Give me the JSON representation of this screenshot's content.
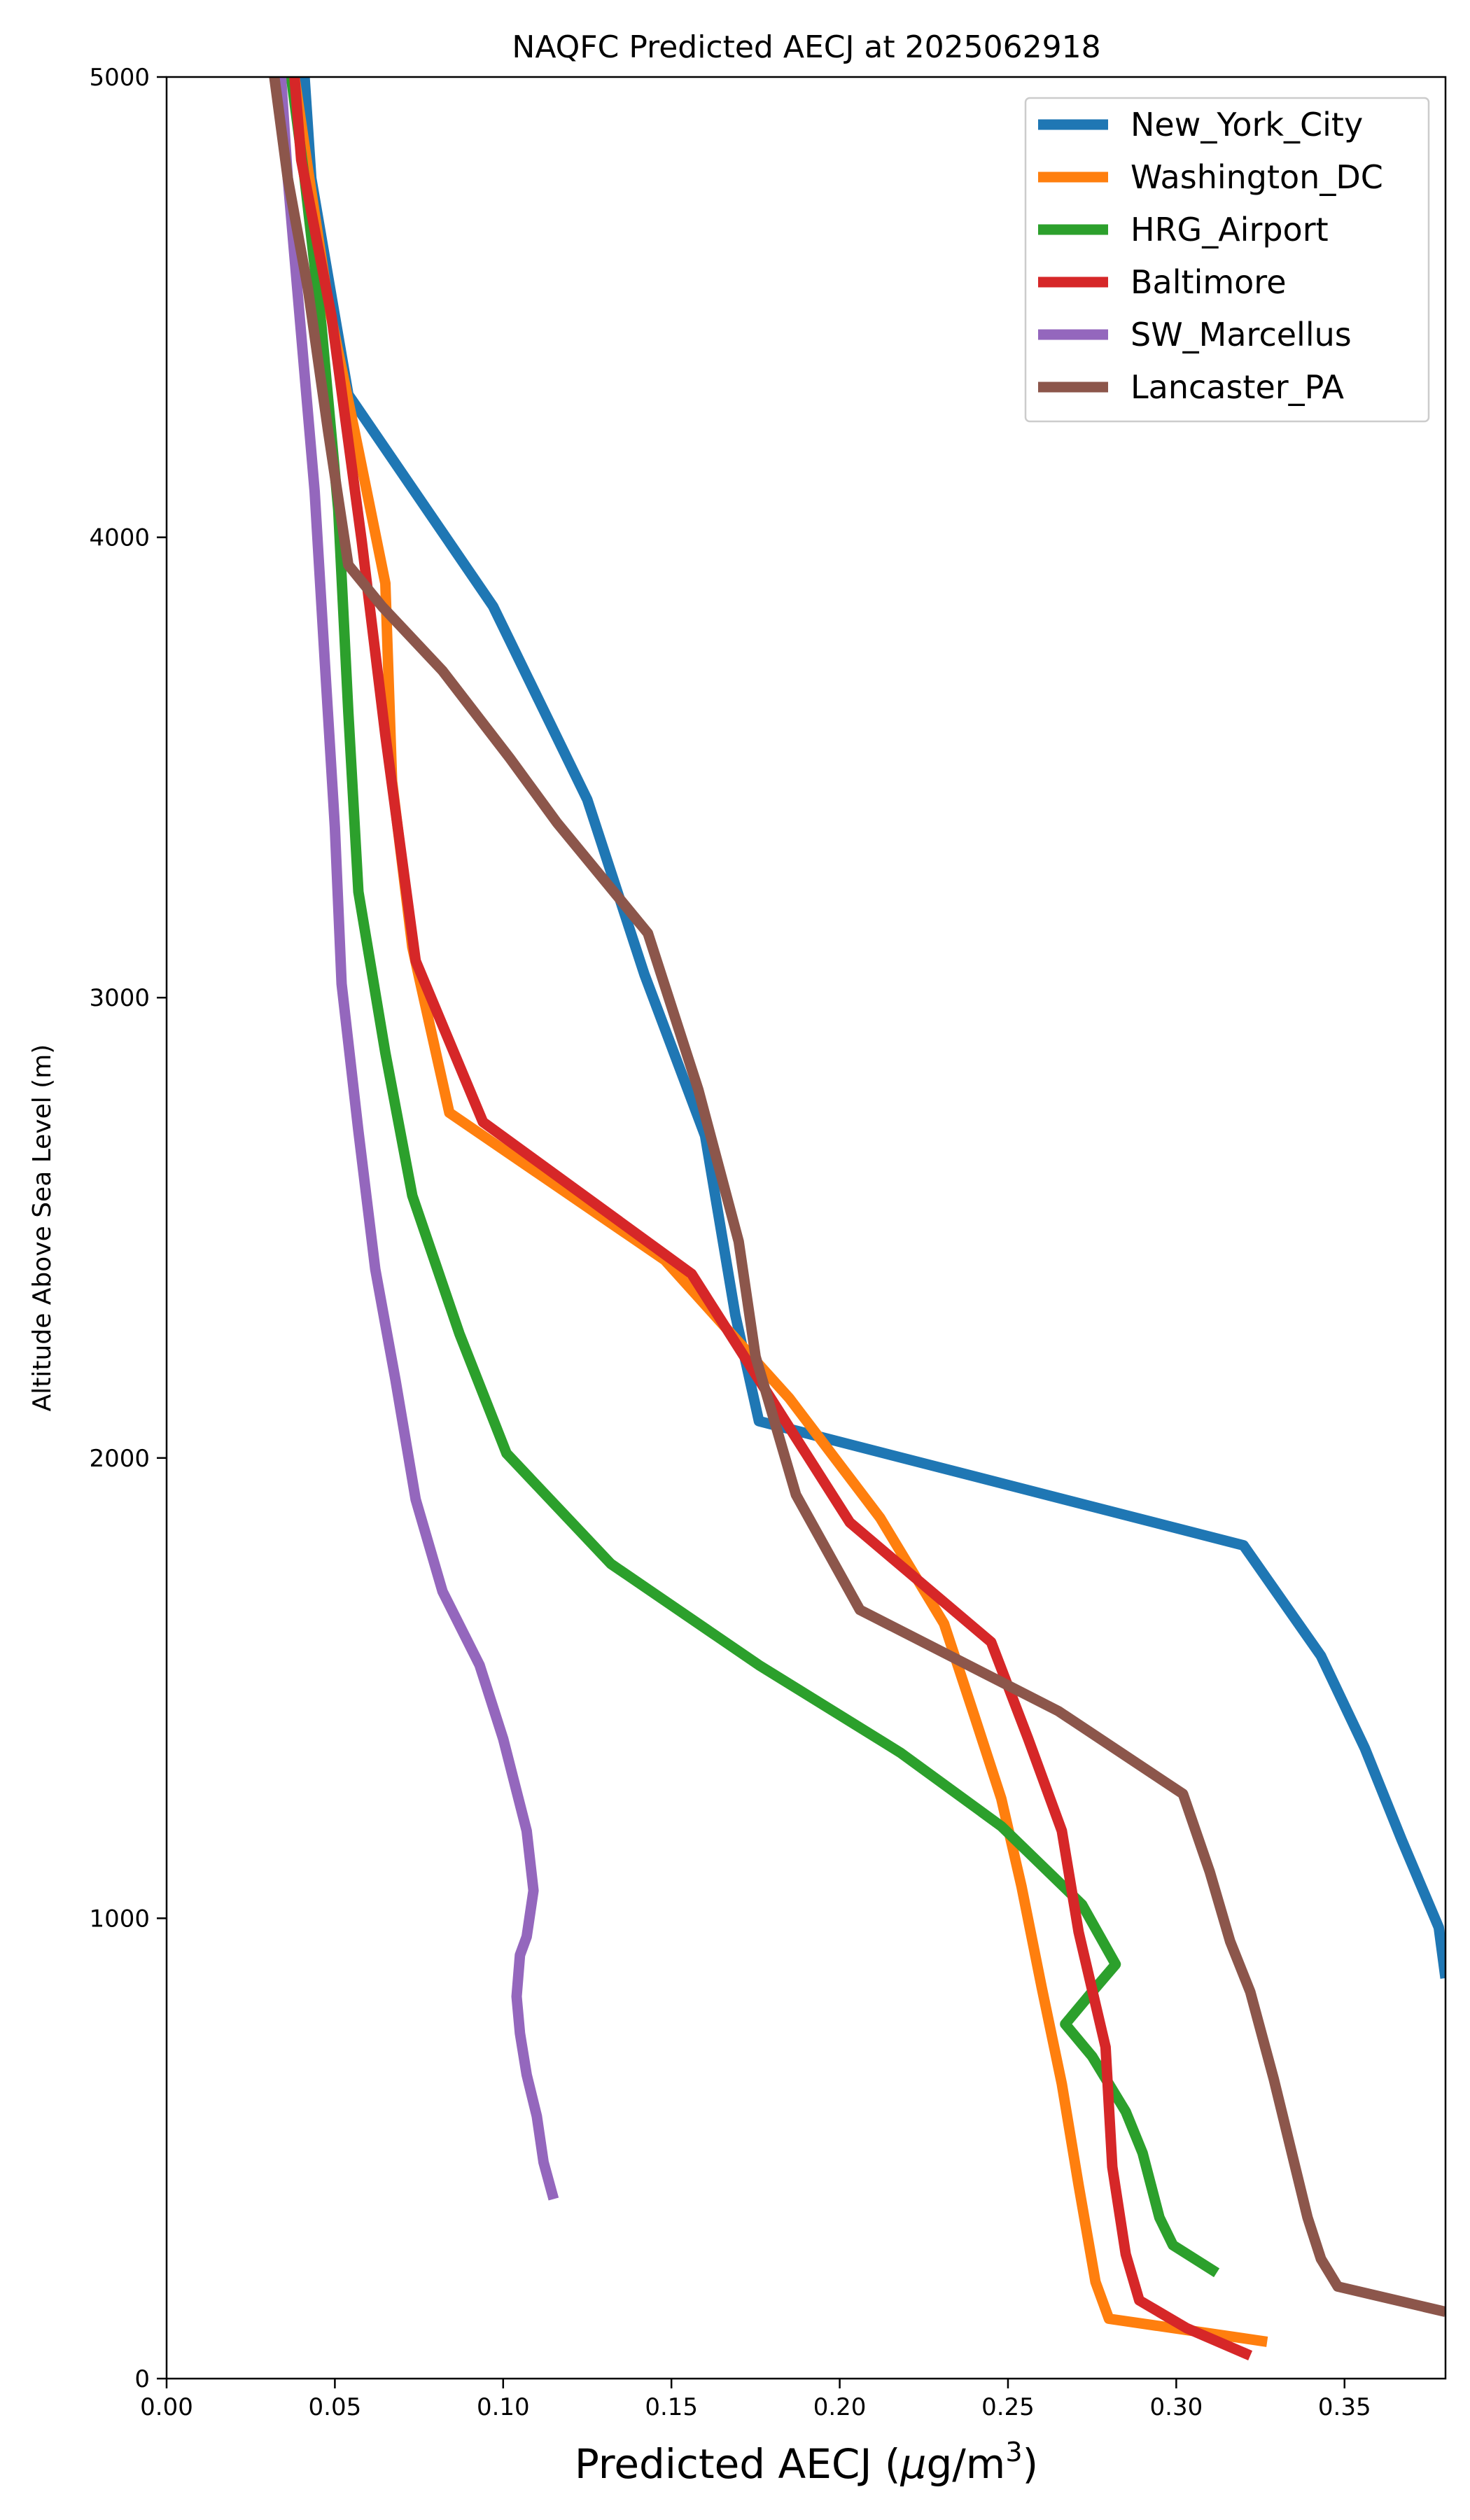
{
  "chart_data": {
    "type": "line",
    "title": "NAQFC Predicted AECJ at 2025062918",
    "xlabel_main": "Predicted AECJ (",
    "xlabel_mu": "μ",
    "xlabel_unit": "g/m",
    "xlabel_exp": "3",
    "xlabel_close": ")",
    "ylabel": "Altitude Above Sea Level (m)",
    "xlim": [
      0.0,
      0.38
    ],
    "ylim": [
      0,
      5000
    ],
    "xticks": [
      0.0,
      0.05,
      0.1,
      0.15,
      0.2,
      0.25,
      0.3,
      0.35
    ],
    "xtick_labels": [
      "0.00",
      "0.05",
      "0.10",
      "0.15",
      "0.20",
      "0.25",
      "0.30",
      "0.35"
    ],
    "yticks": [
      0,
      1000,
      2000,
      3000,
      4000,
      5000
    ],
    "ytick_labels": [
      "0",
      "1000",
      "2000",
      "3000",
      "4000",
      "5000"
    ],
    "grid": false,
    "legend_position": "top-right",
    "series": [
      {
        "name": "New_York_City",
        "color": "#1f77b4",
        "points": [
          [
            0.38,
            870
          ],
          [
            0.378,
            980
          ],
          [
            0.367,
            1170
          ],
          [
            0.356,
            1370
          ],
          [
            0.343,
            1570
          ],
          [
            0.32,
            1810
          ],
          [
            0.176,
            2080
          ],
          [
            0.169,
            2310
          ],
          [
            0.16,
            2700
          ],
          [
            0.142,
            3050
          ],
          [
            0.125,
            3430
          ],
          [
            0.097,
            3850
          ],
          [
            0.054,
            4310
          ],
          [
            0.043,
            4780
          ],
          [
            0.041,
            5000
          ]
        ]
      },
      {
        "name": "Washington_DC",
        "color": "#ff7f0e",
        "points": [
          [
            0.327,
            80
          ],
          [
            0.28,
            130
          ],
          [
            0.276,
            210
          ],
          [
            0.271,
            420
          ],
          [
            0.266,
            640
          ],
          [
            0.26,
            850
          ],
          [
            0.254,
            1070
          ],
          [
            0.248,
            1260
          ],
          [
            0.24,
            1440
          ],
          [
            0.231,
            1640
          ],
          [
            0.212,
            1870
          ],
          [
            0.185,
            2130
          ],
          [
            0.148,
            2430
          ],
          [
            0.084,
            2750
          ],
          [
            0.073,
            3110
          ],
          [
            0.067,
            3470
          ],
          [
            0.065,
            3900
          ],
          [
            0.057,
            4190
          ],
          [
            0.048,
            4510
          ],
          [
            0.042,
            4800
          ],
          [
            0.038,
            5000
          ]
        ]
      },
      {
        "name": "HRG_Airport",
        "color": "#2ca02c",
        "points": [
          [
            0.312,
            230
          ],
          [
            0.299,
            290
          ],
          [
            0.295,
            350
          ],
          [
            0.29,
            490
          ],
          [
            0.285,
            580
          ],
          [
            0.275,
            700
          ],
          [
            0.267,
            770
          ],
          [
            0.275,
            840
          ],
          [
            0.282,
            900
          ],
          [
            0.272,
            1030
          ],
          [
            0.248,
            1200
          ],
          [
            0.218,
            1360
          ],
          [
            0.176,
            1550
          ],
          [
            0.132,
            1770
          ],
          [
            0.101,
            2010
          ],
          [
            0.087,
            2270
          ],
          [
            0.073,
            2570
          ],
          [
            0.065,
            2880
          ],
          [
            0.057,
            3230
          ],
          [
            0.054,
            3620
          ],
          [
            0.051,
            4060
          ],
          [
            0.046,
            4460
          ],
          [
            0.041,
            4780
          ],
          [
            0.037,
            5000
          ]
        ]
      },
      {
        "name": "Baltimore",
        "color": "#d62728",
        "points": [
          [
            0.322,
            50
          ],
          [
            0.303,
            110
          ],
          [
            0.289,
            170
          ],
          [
            0.285,
            270
          ],
          [
            0.281,
            460
          ],
          [
            0.279,
            720
          ],
          [
            0.271,
            970
          ],
          [
            0.266,
            1190
          ],
          [
            0.256,
            1390
          ],
          [
            0.245,
            1600
          ],
          [
            0.203,
            1860
          ],
          [
            0.156,
            2400
          ],
          [
            0.094,
            2730
          ],
          [
            0.074,
            3080
          ],
          [
            0.065,
            3570
          ],
          [
            0.058,
            3990
          ],
          [
            0.049,
            4480
          ],
          [
            0.04,
            4820
          ],
          [
            0.038,
            5000
          ]
        ]
      },
      {
        "name": "SW_Marcellus",
        "color": "#9467bd",
        "points": [
          [
            0.115,
            390
          ],
          [
            0.112,
            470
          ],
          [
            0.11,
            570
          ],
          [
            0.107,
            660
          ],
          [
            0.105,
            750
          ],
          [
            0.104,
            830
          ],
          [
            0.105,
            920
          ],
          [
            0.107,
            960
          ],
          [
            0.109,
            1060
          ],
          [
            0.107,
            1190
          ],
          [
            0.1,
            1390
          ],
          [
            0.093,
            1550
          ],
          [
            0.082,
            1710
          ],
          [
            0.074,
            1910
          ],
          [
            0.068,
            2170
          ],
          [
            0.062,
            2410
          ],
          [
            0.057,
            2710
          ],
          [
            0.052,
            3030
          ],
          [
            0.05,
            3370
          ],
          [
            0.047,
            3730
          ],
          [
            0.044,
            4100
          ],
          [
            0.04,
            4440
          ],
          [
            0.036,
            4780
          ],
          [
            0.034,
            5000
          ]
        ]
      },
      {
        "name": "Lancaster_PA",
        "color": "#8c564b",
        "points": [
          [
            0.38,
            145
          ],
          [
            0.348,
            200
          ],
          [
            0.343,
            260
          ],
          [
            0.339,
            350
          ],
          [
            0.329,
            650
          ],
          [
            0.322,
            840
          ],
          [
            0.316,
            950
          ],
          [
            0.31,
            1100
          ],
          [
            0.302,
            1270
          ],
          [
            0.265,
            1450
          ],
          [
            0.206,
            1670
          ],
          [
            0.187,
            1920
          ],
          [
            0.175,
            2220
          ],
          [
            0.17,
            2470
          ],
          [
            0.158,
            2800
          ],
          [
            0.143,
            3140
          ],
          [
            0.116,
            3380
          ],
          [
            0.102,
            3520
          ],
          [
            0.082,
            3710
          ],
          [
            0.064,
            3850
          ],
          [
            0.054,
            3940
          ],
          [
            0.048,
            4230
          ],
          [
            0.042,
            4540
          ],
          [
            0.036,
            4780
          ],
          [
            0.032,
            5000
          ]
        ]
      }
    ]
  }
}
